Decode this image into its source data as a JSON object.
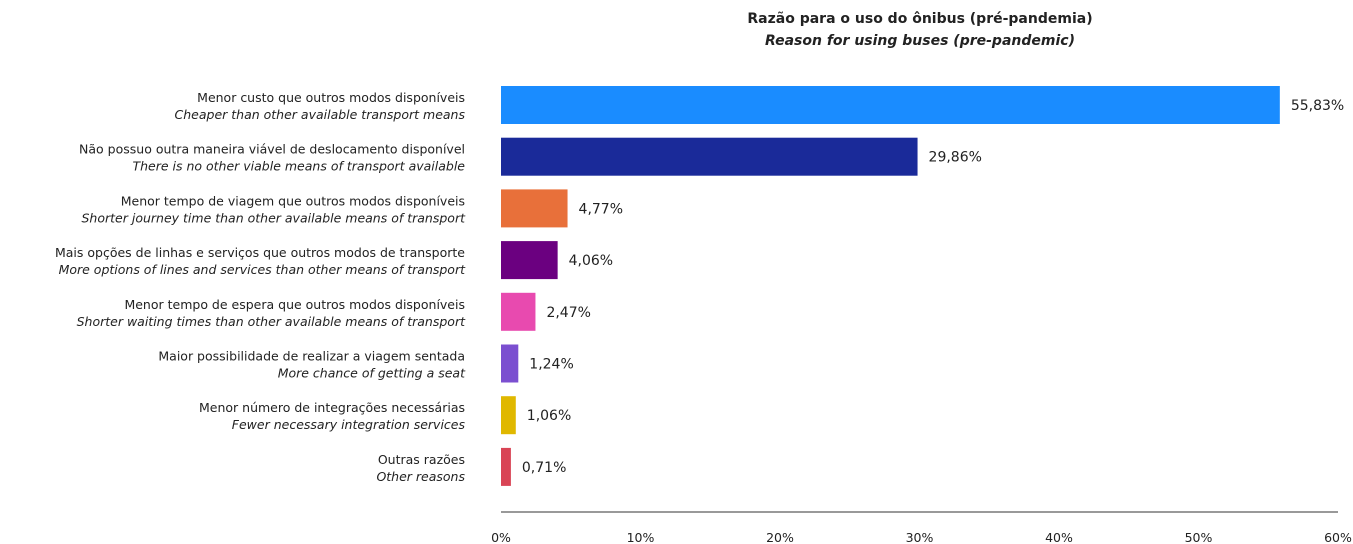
{
  "chart_data": {
    "type": "bar",
    "orientation": "horizontal",
    "title": "Razão para o uso do ônibus (pré-pandemia)",
    "subtitle": "Reason for using buses (pre-pandemic)",
    "categories": [
      {
        "pt": "Menor custo que outros modos disponíveis",
        "en": "Cheaper than other available transport means"
      },
      {
        "pt": "Não possuo outra maneira viável de deslocamento disponível",
        "en": "There is no other viable means of transport available"
      },
      {
        "pt": "Menor tempo de viagem que outros modos disponíveis",
        "en": "Shorter journey time than other available means of transport"
      },
      {
        "pt": "Mais opções de linhas e serviços que outros modos de transporte",
        "en": "More options of lines and services than other means of transport"
      },
      {
        "pt": "Menor tempo de espera que outros modos disponíveis",
        "en": "Shorter waiting times than other available means of transport"
      },
      {
        "pt": "Maior possibilidade de realizar a viagem sentada",
        "en": "More chance of getting a seat"
      },
      {
        "pt": "Menor número de integrações necessárias",
        "en": "Fewer necessary integration services"
      },
      {
        "pt": "Outras razões",
        "en": "Other reasons"
      }
    ],
    "values": [
      55.83,
      29.86,
      4.77,
      4.06,
      2.47,
      1.24,
      1.06,
      0.71
    ],
    "value_labels": [
      "55,83%",
      "29,86%",
      "4,77%",
      "4,06%",
      "2,47%",
      "1,24%",
      "1,06%",
      "0,71%"
    ],
    "colors": [
      "#1a8cff",
      "#1a2a99",
      "#e8703a",
      "#6b0080",
      "#e84aaf",
      "#7b4fd0",
      "#e0b800",
      "#d94455"
    ],
    "xlim": [
      0,
      60
    ],
    "xticks": [
      0,
      10,
      20,
      30,
      40,
      50,
      60
    ],
    "xtick_labels": [
      "0%",
      "10%",
      "20%",
      "30%",
      "40%",
      "50%",
      "60%"
    ],
    "grid": false,
    "legend": "none"
  }
}
